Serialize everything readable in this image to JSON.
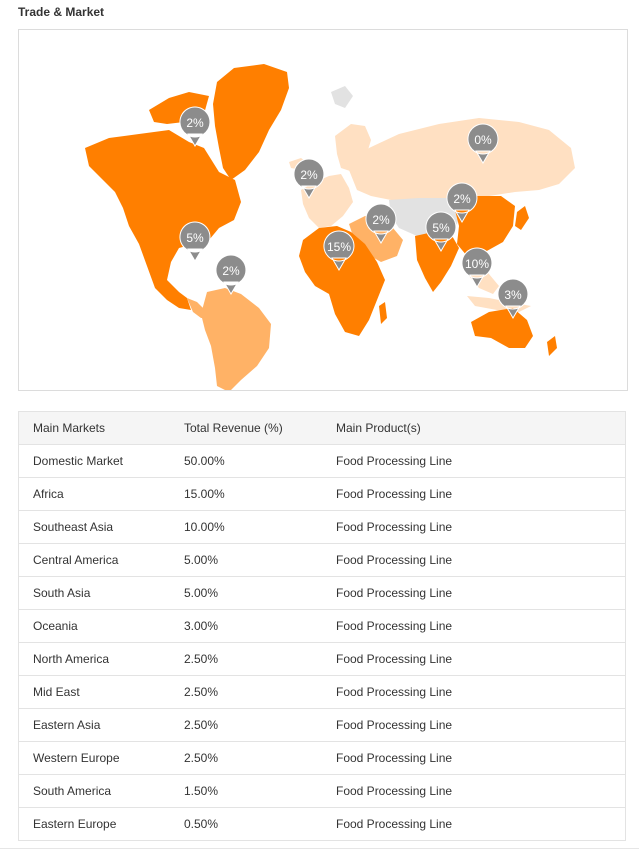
{
  "section_title": "Trade & Market",
  "map": {
    "colors": {
      "dark": "#ff7f00",
      "medium": "#ffb266",
      "light": "#ffe0c2",
      "none": "#e2e2e2",
      "pin": "#8c8c8c"
    },
    "pins": [
      {
        "region": "North America",
        "label": "2%"
      },
      {
        "region": "Central America",
        "label": "5%"
      },
      {
        "region": "South America",
        "label": "2%"
      },
      {
        "region": "Western Europe",
        "label": "2%"
      },
      {
        "region": "Africa",
        "label": "15%"
      },
      {
        "region": "Mid East",
        "label": "2%"
      },
      {
        "region": "Eastern Europe",
        "label": "0%"
      },
      {
        "region": "South Asia",
        "label": "5%"
      },
      {
        "region": "Eastern Asia",
        "label": "2%"
      },
      {
        "region": "Southeast Asia",
        "label": "10%"
      },
      {
        "region": "Oceania",
        "label": "3%"
      }
    ]
  },
  "table": {
    "headers": [
      "Main Markets",
      "Total Revenue (%)",
      "Main Product(s)"
    ],
    "rows": [
      [
        "Domestic Market",
        "50.00%",
        "Food Processing Line"
      ],
      [
        "Africa",
        "15.00%",
        "Food Processing Line"
      ],
      [
        "Southeast Asia",
        "10.00%",
        "Food Processing Line"
      ],
      [
        "Central America",
        "5.00%",
        "Food Processing Line"
      ],
      [
        "South Asia",
        "5.00%",
        "Food Processing Line"
      ],
      [
        "Oceania",
        "3.00%",
        "Food Processing Line"
      ],
      [
        "North America",
        "2.50%",
        "Food Processing Line"
      ],
      [
        "Mid East",
        "2.50%",
        "Food Processing Line"
      ],
      [
        "Eastern Asia",
        "2.50%",
        "Food Processing Line"
      ],
      [
        "Western Europe",
        "2.50%",
        "Food Processing Line"
      ],
      [
        "South America",
        "1.50%",
        "Food Processing Line"
      ],
      [
        "Eastern Europe",
        "0.50%",
        "Food Processing Line"
      ]
    ]
  }
}
